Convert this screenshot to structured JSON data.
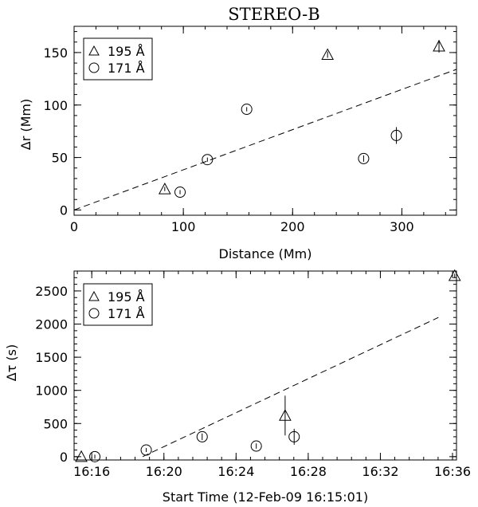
{
  "chart_data": [
    {
      "type": "scatter",
      "title": "STEREO-B",
      "xlabel": "Distance (Mm)",
      "ylabel": "Δr (Mm)",
      "xlim": [
        0,
        350
      ],
      "ylim": [
        -5,
        175
      ],
      "xticks": [
        0,
        100,
        200,
        300
      ],
      "yticks": [
        0,
        50,
        100,
        150
      ],
      "xtick_labels": [
        "0",
        "100",
        "200",
        "300"
      ],
      "ytick_labels": [
        "0",
        "50",
        "100",
        "150"
      ],
      "grid": false,
      "legend": {
        "position": "top-left",
        "entries": [
          "195 Å",
          "171 Å"
        ]
      },
      "series": [
        {
          "name": "195 Å",
          "marker": "triangle",
          "points": [
            {
              "x": 83,
              "y": 20,
              "err": 2
            },
            {
              "x": 232,
              "y": 148,
              "err": 3
            },
            {
              "x": 334,
              "y": 156,
              "err": 6
            }
          ]
        },
        {
          "name": "171 Å",
          "marker": "circle",
          "points": [
            {
              "x": 97,
              "y": 17,
              "err": 2
            },
            {
              "x": 122,
              "y": 48,
              "err": 2
            },
            {
              "x": 158,
              "y": 96,
              "err": 2
            },
            {
              "x": 265,
              "y": 49,
              "err": 3
            },
            {
              "x": 295,
              "y": 71,
              "err": 8
            }
          ]
        }
      ],
      "fit_line": {
        "style": "dashed",
        "x": [
          0,
          350
        ],
        "y": [
          0,
          134
        ]
      }
    },
    {
      "type": "scatter",
      "title": "",
      "xlabel": "Start Time (12-Feb-09 16:15:01)",
      "ylabel": "Δτ (s)",
      "x_unit": "minutes after 16:15:01",
      "xlim": [
        0,
        21.2
      ],
      "ylim": [
        -50,
        2800
      ],
      "xticks": [
        0.98,
        4.98,
        8.98,
        12.98,
        16.98,
        20.98
      ],
      "yticks": [
        0,
        500,
        1000,
        1500,
        2000,
        2500
      ],
      "xtick_labels": [
        "16:16",
        "16:20",
        "16:24",
        "16:28",
        "16:32",
        "16:36"
      ],
      "ytick_labels": [
        "0",
        "500",
        "1000",
        "1500",
        "2000",
        "2500"
      ],
      "grid": false,
      "legend": {
        "position": "top-left",
        "entries": [
          "195 Å",
          "171 Å"
        ]
      },
      "series": [
        {
          "name": "195 Å",
          "marker": "triangle",
          "points": [
            {
              "x": 0.4,
              "y": 0,
              "err": 0
            },
            {
              "x": 11.7,
              "y": 620,
              "err": 300
            },
            {
              "x": 21.1,
              "y": 2730,
              "err": 30
            }
          ]
        },
        {
          "name": "171 Å",
          "marker": "circle",
          "points": [
            {
              "x": 1.15,
              "y": 0,
              "err": 30
            },
            {
              "x": 4.0,
              "y": 100,
              "err": 30
            },
            {
              "x": 7.1,
              "y": 300,
              "err": 50
            },
            {
              "x": 10.1,
              "y": 160,
              "err": 40
            },
            {
              "x": 12.2,
              "y": 300,
              "err": 120
            }
          ]
        }
      ],
      "fit_line": {
        "style": "dashed",
        "x": [
          3.8,
          20.2
        ],
        "y": [
          0,
          2100
        ]
      }
    }
  ]
}
